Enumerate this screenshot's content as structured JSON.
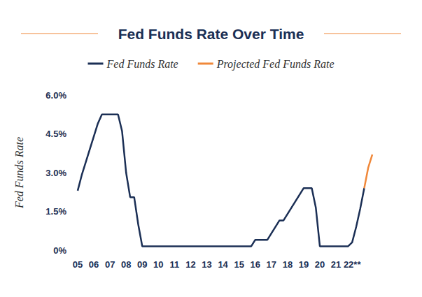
{
  "chart_data": {
    "type": "line",
    "title": "Fed Funds Rate Over Time",
    "y_label": "Fed Funds Rate",
    "categories": [
      "05",
      null,
      null,
      null,
      "06",
      null,
      null,
      null,
      "07",
      null,
      null,
      null,
      "08",
      null,
      null,
      null,
      "09",
      null,
      null,
      null,
      "10",
      null,
      null,
      null,
      "11",
      null,
      null,
      null,
      "12",
      null,
      null,
      null,
      "13",
      null,
      null,
      null,
      "14",
      null,
      null,
      null,
      "15",
      null,
      null,
      null,
      "16",
      null,
      null,
      null,
      "17",
      null,
      null,
      null,
      "18",
      null,
      null,
      null,
      "19",
      null,
      null,
      null,
      "20",
      null,
      null,
      null,
      "21",
      null,
      null,
      null,
      "22**",
      null,
      null,
      null,
      null,
      null
    ],
    "series": [
      {
        "name": "Fed Funds Rate",
        "color": "#1b2f55",
        "line_style": "solid",
        "values": [
          2.3,
          2.9,
          3.4,
          3.9,
          4.4,
          4.9,
          5.25,
          5.25,
          5.25,
          5.25,
          5.25,
          4.6,
          3.0,
          2.05,
          2.05,
          1.0,
          0.15,
          0.15,
          0.15,
          0.15,
          0.15,
          0.15,
          0.15,
          0.15,
          0.15,
          0.15,
          0.15,
          0.15,
          0.15,
          0.15,
          0.15,
          0.15,
          0.15,
          0.15,
          0.15,
          0.15,
          0.15,
          0.15,
          0.15,
          0.15,
          0.15,
          0.15,
          0.15,
          0.15,
          0.4,
          0.4,
          0.4,
          0.4,
          0.65,
          0.9,
          1.15,
          1.15,
          1.4,
          1.65,
          1.9,
          2.15,
          2.4,
          2.4,
          2.4,
          1.65,
          0.15,
          0.15,
          0.15,
          0.15,
          0.15,
          0.15,
          0.15,
          0.15,
          0.3,
          0.9,
          1.6,
          2.4,
          null,
          null
        ]
      },
      {
        "name": "Projected Fed Funds Rate",
        "color": "#f0883a",
        "line_style": "solid",
        "values": [
          null,
          null,
          null,
          null,
          null,
          null,
          null,
          null,
          null,
          null,
          null,
          null,
          null,
          null,
          null,
          null,
          null,
          null,
          null,
          null,
          null,
          null,
          null,
          null,
          null,
          null,
          null,
          null,
          null,
          null,
          null,
          null,
          null,
          null,
          null,
          null,
          null,
          null,
          null,
          null,
          null,
          null,
          null,
          null,
          null,
          null,
          null,
          null,
          null,
          null,
          null,
          null,
          null,
          null,
          null,
          null,
          null,
          null,
          null,
          null,
          null,
          null,
          null,
          null,
          null,
          null,
          null,
          null,
          null,
          null,
          null,
          2.4,
          3.2,
          3.7
        ]
      }
    ],
    "ylim": [
      0,
      6
    ],
    "yticks": [
      {
        "value": 0,
        "label": "0%"
      },
      {
        "value": 1.5,
        "label": "1.5%"
      },
      {
        "value": 3,
        "label": "3.0%"
      },
      {
        "value": 4.5,
        "label": "4.5%"
      },
      {
        "value": 6,
        "label": "6.0%"
      }
    ],
    "grid": false,
    "legend": "top"
  }
}
